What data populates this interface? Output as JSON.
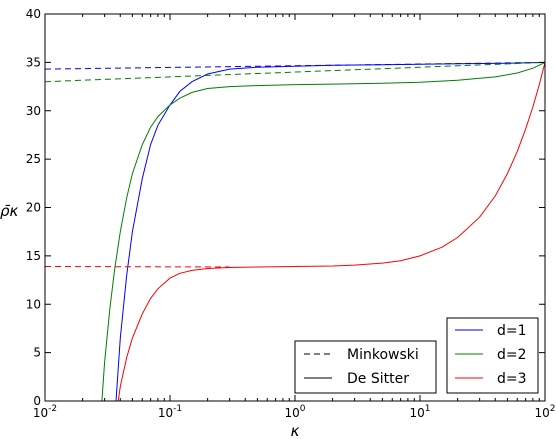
{
  "chart_data": {
    "type": "line",
    "xlabel": "κ",
    "ylabel": "ρ̄κ",
    "xscale": "log",
    "xlim": [
      0.01,
      100
    ],
    "ylim": [
      0,
      40
    ],
    "x_ticks": [
      {
        "base": "10",
        "exp": "-2"
      },
      {
        "base": "10",
        "exp": "-1"
      },
      {
        "base": "10",
        "exp": "0"
      },
      {
        "base": "10",
        "exp": "1"
      },
      {
        "base": "10",
        "exp": "2"
      }
    ],
    "y_ticks": [
      "0",
      "5",
      "10",
      "15",
      "20",
      "25",
      "30",
      "35",
      "40"
    ],
    "grid": false,
    "series": [
      {
        "name": "d=1",
        "color": "#0000ff",
        "minkowski": {
          "x": [
            0.01,
            100
          ],
          "y": [
            34.3,
            35.0
          ]
        },
        "de_sitter": {
          "x": [
            0.037,
            0.04,
            0.045,
            0.05,
            0.06,
            0.07,
            0.08,
            0.1,
            0.12,
            0.15,
            0.2,
            0.3,
            0.5,
            1,
            2,
            5,
            10,
            20,
            50,
            100
          ],
          "y": [
            0.0,
            6.5,
            13.0,
            17.5,
            23.0,
            26.5,
            28.5,
            30.6,
            32.0,
            33.0,
            33.8,
            34.3,
            34.5,
            34.6,
            34.7,
            34.75,
            34.8,
            34.85,
            34.9,
            35.0
          ]
        }
      },
      {
        "name": "d=2",
        "color": "#008000",
        "minkowski": {
          "x": [
            0.01,
            100
          ],
          "y": [
            33.0,
            35.0
          ]
        },
        "de_sitter": {
          "x": [
            0.0285,
            0.03,
            0.033,
            0.036,
            0.04,
            0.045,
            0.05,
            0.06,
            0.07,
            0.08,
            0.1,
            0.12,
            0.15,
            0.2,
            0.3,
            0.5,
            1,
            2,
            5,
            10,
            20,
            40,
            60,
            80,
            100
          ],
          "y": [
            0.0,
            4.0,
            9.5,
            13.5,
            17.5,
            21.0,
            23.5,
            26.5,
            28.3,
            29.4,
            30.6,
            31.3,
            31.9,
            32.3,
            32.5,
            32.6,
            32.7,
            32.75,
            32.85,
            32.95,
            33.15,
            33.5,
            33.9,
            34.4,
            35.0
          ]
        }
      },
      {
        "name": "d=3",
        "color": "#ff0000",
        "minkowski": {
          "x": [
            0.01,
            0.3
          ],
          "y": [
            13.9,
            13.85
          ]
        },
        "de_sitter": {
          "x": [
            0.0385,
            0.04,
            0.045,
            0.05,
            0.06,
            0.07,
            0.08,
            0.1,
            0.12,
            0.15,
            0.2,
            0.3,
            0.5,
            1,
            2,
            3,
            5,
            7,
            10,
            15,
            20,
            30,
            40,
            50,
            60,
            70,
            80,
            90,
            100
          ],
          "y": [
            0.0,
            1.5,
            4.5,
            6.5,
            9.0,
            10.6,
            11.6,
            12.7,
            13.2,
            13.5,
            13.7,
            13.8,
            13.85,
            13.9,
            13.95,
            14.05,
            14.25,
            14.5,
            15.0,
            15.9,
            16.9,
            19.0,
            21.2,
            23.5,
            25.8,
            28.1,
            30.4,
            32.7,
            35.0
          ]
        }
      }
    ],
    "legend_styles": {
      "position": "lower-left-of-center",
      "entries": [
        {
          "label": "Minkowski",
          "dash": true
        },
        {
          "label": "De Sitter",
          "dash": false
        }
      ]
    },
    "legend_dims": {
      "position": "lower-right",
      "entries": [
        "d=1",
        "d=2",
        "d=3"
      ]
    }
  }
}
